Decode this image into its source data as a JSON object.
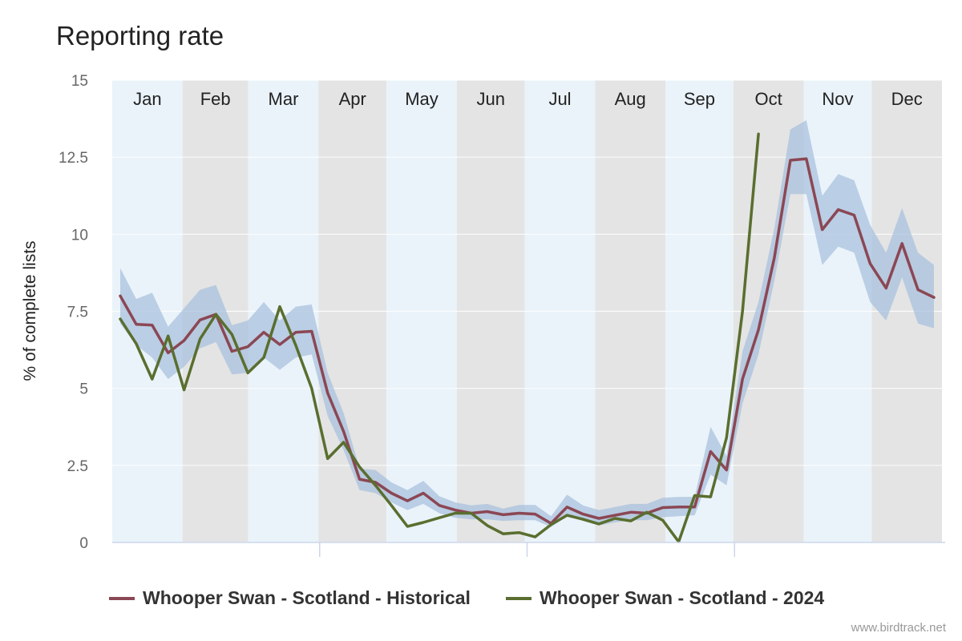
{
  "title": "Reporting rate",
  "credit": "www.birdtrack.net",
  "chart_data": {
    "type": "line",
    "title": "Reporting rate",
    "ylabel": "% of complete lists",
    "ylim": [
      0,
      15
    ],
    "yticks": [
      0,
      2.5,
      5,
      7.5,
      10,
      12.5,
      15
    ],
    "ytick_labels": [
      "0",
      "2.5",
      "5",
      "7.5",
      "10",
      "12.5",
      "15"
    ],
    "months": [
      "Jan",
      "Feb",
      "Mar",
      "Apr",
      "May",
      "Jun",
      "Jul",
      "Aug",
      "Sep",
      "Oct",
      "Nov",
      "Dec"
    ],
    "month_colors": [
      "#eaf3fa",
      "#e4e4e4"
    ],
    "grid": true,
    "legend_position": "bottom",
    "series": [
      {
        "name": "Whooper Swan - Scotland - Historical",
        "color": "#8b4754",
        "band_color": "#aac2dd",
        "values": [
          8.0,
          7.08,
          7.05,
          6.15,
          6.55,
          7.22,
          7.4,
          6.2,
          6.35,
          6.82,
          6.42,
          6.82,
          6.85,
          4.85,
          3.6,
          2.05,
          1.95,
          1.6,
          1.35,
          1.6,
          1.2,
          1.05,
          0.95,
          1.0,
          0.9,
          0.95,
          0.92,
          0.62,
          1.15,
          0.92,
          0.78,
          0.88,
          0.98,
          0.95,
          1.13,
          1.15,
          1.15,
          2.95,
          2.35,
          5.3,
          6.9,
          9.25,
          12.4,
          12.45,
          10.15,
          10.8,
          10.62,
          9.05,
          8.25,
          9.7,
          8.2,
          7.95
        ],
        "band_low": [
          7.1,
          6.4,
          6.0,
          5.3,
          5.7,
          6.3,
          6.5,
          5.45,
          5.5,
          6.0,
          5.6,
          6.0,
          6.1,
          4.1,
          3.0,
          1.7,
          1.6,
          1.3,
          1.05,
          1.25,
          0.95,
          0.8,
          0.75,
          0.75,
          0.7,
          0.72,
          0.72,
          0.5,
          0.85,
          0.7,
          0.55,
          0.65,
          0.72,
          0.72,
          0.82,
          0.85,
          0.88,
          2.2,
          1.85,
          4.5,
          6.1,
          8.5,
          11.3,
          11.3,
          9.0,
          9.6,
          9.4,
          7.8,
          7.2,
          8.6,
          7.1,
          6.95
        ],
        "band_high": [
          8.9,
          7.9,
          8.1,
          7.0,
          7.6,
          8.2,
          8.35,
          7.05,
          7.2,
          7.8,
          7.2,
          7.65,
          7.72,
          5.5,
          4.2,
          2.4,
          2.35,
          1.95,
          1.7,
          2.0,
          1.5,
          1.3,
          1.2,
          1.25,
          1.1,
          1.22,
          1.22,
          0.85,
          1.55,
          1.2,
          1.05,
          1.15,
          1.25,
          1.25,
          1.45,
          1.48,
          1.48,
          3.75,
          2.8,
          6.2,
          7.8,
          10.2,
          13.4,
          13.7,
          11.25,
          11.95,
          11.75,
          10.3,
          9.4,
          10.85,
          9.4,
          9.0
        ]
      },
      {
        "name": "Whooper Swan - Scotland - 2024",
        "color": "#5a6e2f",
        "values": [
          7.25,
          6.45,
          5.3,
          6.7,
          4.95,
          6.6,
          7.4,
          6.75,
          5.5,
          6.0,
          7.65,
          6.4,
          5.0,
          2.72,
          3.25,
          2.45,
          1.85,
          1.2,
          0.52,
          0.65,
          0.8,
          0.95,
          0.95,
          0.55,
          0.28,
          0.32,
          0.18,
          0.58,
          0.88,
          0.75,
          0.6,
          0.78,
          0.7,
          0.98,
          0.72,
          0.02,
          1.52,
          1.48,
          3.4,
          7.5,
          13.25
        ]
      }
    ]
  }
}
